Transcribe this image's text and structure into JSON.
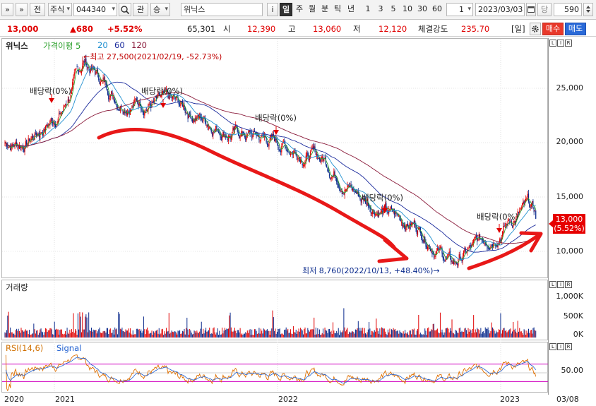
{
  "toolbar": {
    "nav_left": "»",
    "nav_menu": "»",
    "exchange": "전",
    "category": "주식",
    "code": "044340",
    "search_icon": "search-icon",
    "interest": "관",
    "up_down": "승",
    "stock_name": "위닉스",
    "periods": [
      "i",
      "일",
      "주",
      "월",
      "분",
      "틱",
      "년"
    ],
    "intervals": [
      "1",
      "3",
      "5",
      "10",
      "30",
      "60"
    ],
    "count_value": "1",
    "date": "2023/03/03",
    "date_mode": "당",
    "bars": "590"
  },
  "info": {
    "price": "13,000",
    "change": "▲680",
    "pct": "+5.52%",
    "volume": "65,301",
    "open_label": "시",
    "open": "12,390",
    "high_label": "고",
    "high": "13,060",
    "low_label": "저",
    "low": "12,120",
    "strength_label": "체결강도",
    "strength": "235.70",
    "period_tag": "[일]",
    "buy_label": "매수",
    "sell_label": "매도"
  },
  "price_panel": {
    "title": "위닉스",
    "ma_label": "가격이평 5",
    "ma20": "20",
    "ma60": "60",
    "ma120": "120",
    "yticks": [
      "25,000",
      "20,000",
      "15,000",
      "10,000"
    ],
    "yvalues": [
      25000,
      20000,
      15000,
      10000
    ],
    "high_note": "←최고 27,500(2021/02/19, -52.73%)",
    "low_note": "최저 8,760(2022/10/13, +48.40%)→",
    "dividend_label": "배당락(0%)",
    "current_price": "13,000",
    "current_pct": "(5.52%)",
    "colors": {
      "up": "#e00000",
      "down": "#0a2a8c",
      "ma5": "#2ca02c",
      "ma20": "#1f8fd0",
      "ma60": "#1a2a9c",
      "ma120": "#8a1a3a",
      "annotation": "#e00000"
    }
  },
  "volume_panel": {
    "title": "거래량",
    "yticks": [
      "1,000K",
      "500K",
      "0K"
    ]
  },
  "rsi_panel": {
    "rsi_label": "RSI(14,6)",
    "signal_label": "Signal",
    "ytick": "50.00"
  },
  "x_axis": {
    "labels": [
      "2020",
      "2021",
      "2022",
      "2023"
    ],
    "last_date": "03/08"
  },
  "chart_data": {
    "type": "candlestick",
    "approx_close_path": [
      [
        "2020-11",
        20000
      ],
      [
        "2021-01",
        23000
      ],
      [
        "2021-02-19",
        27500
      ],
      [
        "2021-04",
        24000
      ],
      [
        "2021-07",
        23500
      ],
      [
        "2021-10",
        21000
      ],
      [
        "2021-12",
        20300
      ],
      [
        "2022-03",
        18500
      ],
      [
        "2022-05",
        15000
      ],
      [
        "2022-07",
        13000
      ],
      [
        "2022-08",
        12500
      ],
      [
        "2022-10-13",
        8760
      ],
      [
        "2022-12",
        11500
      ],
      [
        "2023-02",
        14000
      ],
      [
        "2023-03-03",
        13000
      ]
    ],
    "ylim": [
      8000,
      29000
    ],
    "rsi_ref_lines": [
      30,
      50,
      70
    ]
  }
}
